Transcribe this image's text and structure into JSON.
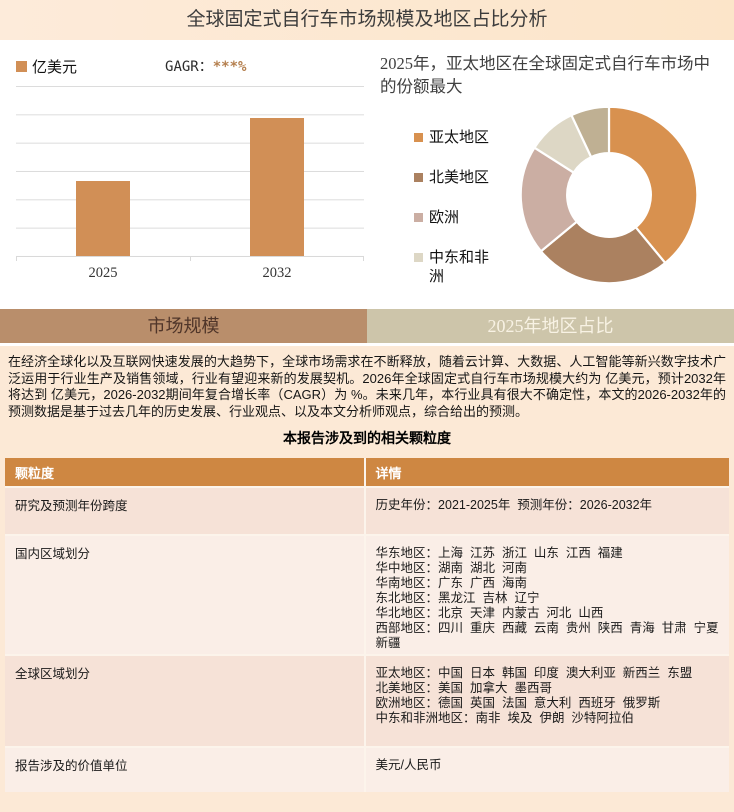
{
  "page": {
    "title": "全球固定式自行车市场规模及地区占比分析"
  },
  "tabs": [
    {
      "label": "市场规模",
      "active": true
    },
    {
      "label": "2025年地区占比",
      "active": false
    }
  ],
  "chart_data": [
    {
      "type": "bar",
      "categories": [
        "2025",
        "2032"
      ],
      "series": [
        {
          "name": "亿美元",
          "values": [
            "***",
            "***"
          ]
        }
      ],
      "relative_heights": [
        0.44,
        0.81
      ],
      "unit_label": "亿美元",
      "cagr_label": "GAGR：",
      "cagr_value": "***%",
      "bar_color": "#D18F56",
      "grid": true,
      "ylim_note": "y-axis unlabeled (values masked)"
    },
    {
      "type": "pie",
      "donut": true,
      "title": "2025年，亚太地区在全球固定式自行车市场中的份额最大",
      "legend_position": "left",
      "slices": [
        {
          "label": "亚太地区",
          "percent": 39,
          "color": "#D8914F"
        },
        {
          "label": "北美地区",
          "percent": 25,
          "color": "#AB8160"
        },
        {
          "label": "欧洲",
          "percent": 20,
          "color": "#CBAEA3"
        },
        {
          "label": "中东和非洲",
          "percent": 9,
          "color": "#DDD7C5"
        },
        {
          "label": "",
          "percent": 7,
          "color": "#BFB093"
        }
      ]
    }
  ],
  "report": {
    "paragraph": "在经济全球化以及互联网快速发展的大趋势下，全球市场需求在不断释放，随着云计算、大数据、人工智能等新兴数字技术广泛运用于行业生产及销售领域，行业有望迎来新的发展契机。2026年全球固定式自行车市场规模大约为 亿美元，预计2032年将达到 亿美元，2026-2032期间年复合增长率（CAGR）为 %。未来几年，本行业具有很大不确定性，本文的2026-2032年的预测数据是基于过去几年的历史发展、行业观点、以及本文分析师观点，综合给出的预测。",
    "table_title": "本报告涉及到的相关颗粒度",
    "table": {
      "headers": [
        "颗粒度",
        "详情"
      ],
      "rows": [
        {
          "label": "研究及预测年份跨度",
          "details": [
            "历史年份：2021-2025年  预测年份：2026-2032年"
          ]
        },
        {
          "label": "国内区域划分",
          "details": [
            "华东地区：上海  江苏  浙江  山东  江西  福建",
            "华中地区：湖南  湖北  河南",
            "华南地区：广东  广西  海南",
            "东北地区：黑龙江  吉林  辽宁",
            "华北地区：北京  天津  内蒙古  河北  山西",
            "西部地区：四川  重庆  西藏  云南  贵州  陕西  青海  甘肃  宁夏  新疆"
          ]
        },
        {
          "label": "全球区域划分",
          "details": [
            "亚太地区：中国  日本  韩国  印度  澳大利亚  新西兰  东盟",
            "北美地区：美国  加拿大  墨西哥",
            "欧洲地区：德国  英国  法国  意大利  西班牙  俄罗斯",
            "中东和非洲地区：南非  埃及  伊朗  沙特阿拉伯"
          ]
        },
        {
          "label": "报告涉及的价值单位",
          "details": [
            "美元/人民币"
          ]
        }
      ]
    }
  },
  "colors": {
    "titlebar_bg": "#FCE7CF",
    "bar": "#D18F56",
    "tab_active_bg": "#B98E6B",
    "tab_inactive_bg": "#CDC5AA",
    "content_bg": "#FCE9D6",
    "table_header_bg": "#CE8742",
    "row_odd_bg": "#F6E2D7",
    "row_even_bg": "#FAEEE7"
  }
}
